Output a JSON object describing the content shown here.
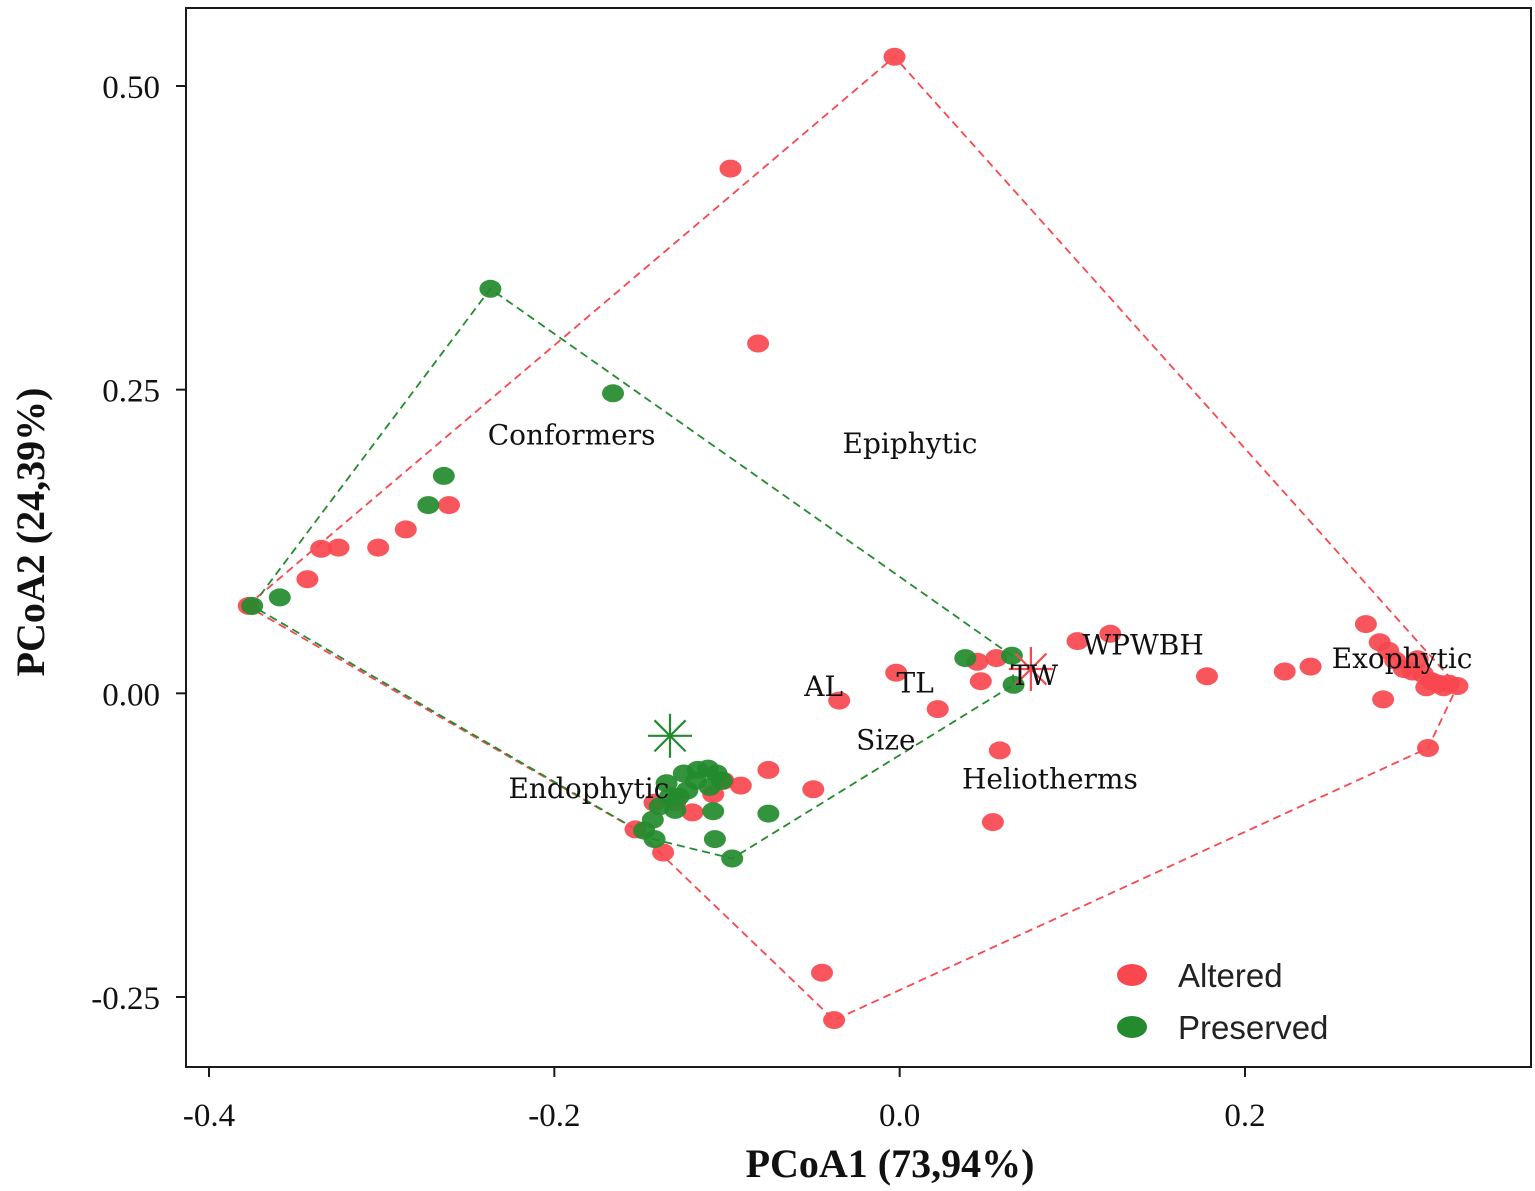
{
  "chart_data": {
    "type": "scatter",
    "title": "",
    "xlabel": "PCoA1 (73,94%)",
    "ylabel": "PCoA2 (24,39%)",
    "xlim": [
      -0.41,
      0.34
    ],
    "ylim": [
      -0.305,
      0.55
    ],
    "xticks": [
      -0.4,
      -0.2,
      0.0,
      0.2
    ],
    "xtick_labels": [
      "-0.4",
      "-0.2",
      "0.0",
      "0.2"
    ],
    "yticks": [
      -0.25,
      0.0,
      0.25,
      0.5
    ],
    "ytick_labels": [
      "-0.25",
      "0.00",
      "0.25",
      "0.50"
    ],
    "grid": false,
    "legend_position": "bottom-right",
    "series": [
      {
        "name": "Altered",
        "color": "#f8474f",
        "points": [
          [
            -0.377,
            0.072
          ],
          [
            -0.343,
            0.094
          ],
          [
            -0.335,
            0.119
          ],
          [
            -0.325,
            0.12
          ],
          [
            -0.302,
            0.12
          ],
          [
            -0.286,
            0.135
          ],
          [
            -0.261,
            0.155
          ],
          [
            -0.098,
            0.432
          ],
          [
            -0.003,
            0.524
          ],
          [
            -0.082,
            0.288
          ],
          [
            -0.035,
            -0.006
          ],
          [
            -0.002,
            0.017
          ],
          [
            0.022,
            -0.013
          ],
          [
            0.045,
            0.026
          ],
          [
            0.047,
            0.01
          ],
          [
            0.056,
            0.029
          ],
          [
            0.058,
            -0.047
          ],
          [
            0.054,
            -0.106
          ],
          [
            0.103,
            0.043
          ],
          [
            0.122,
            0.049
          ],
          [
            0.178,
            0.014
          ],
          [
            0.223,
            0.018
          ],
          [
            0.238,
            0.022
          ],
          [
            0.27,
            0.057
          ],
          [
            0.278,
            0.042
          ],
          [
            0.283,
            0.035
          ],
          [
            0.287,
            0.027
          ],
          [
            0.292,
            0.02
          ],
          [
            0.297,
            0.018
          ],
          [
            0.3,
            0.028
          ],
          [
            0.303,
            0.016
          ],
          [
            0.308,
            0.01
          ],
          [
            0.312,
            0.008
          ],
          [
            0.318,
            0.008
          ],
          [
            0.323,
            0.006
          ],
          [
            0.305,
            0.005
          ],
          [
            0.315,
            0.005
          ],
          [
            0.28,
            -0.005
          ],
          [
            0.306,
            -0.045
          ],
          [
            -0.076,
            -0.063
          ],
          [
            -0.092,
            -0.076
          ],
          [
            -0.102,
            -0.072
          ],
          [
            -0.108,
            -0.083
          ],
          [
            -0.12,
            -0.098
          ],
          [
            -0.13,
            -0.09
          ],
          [
            -0.142,
            -0.09
          ],
          [
            -0.153,
            -0.112
          ],
          [
            -0.137,
            -0.131
          ],
          [
            -0.05,
            -0.079
          ],
          [
            -0.045,
            -0.23
          ],
          [
            -0.038,
            -0.269
          ]
        ]
      },
      {
        "name": "Preserved",
        "color": "#238b2e",
        "points": [
          [
            -0.375,
            0.072
          ],
          [
            -0.359,
            0.079
          ],
          [
            -0.237,
            0.333
          ],
          [
            -0.166,
            0.247
          ],
          [
            -0.264,
            0.179
          ],
          [
            -0.273,
            0.155
          ],
          [
            0.038,
            0.029
          ],
          [
            0.065,
            0.031
          ],
          [
            0.066,
            0.007
          ],
          [
            -0.135,
            -0.074
          ],
          [
            -0.125,
            -0.066
          ],
          [
            -0.117,
            -0.063
          ],
          [
            -0.111,
            -0.062
          ],
          [
            -0.106,
            -0.066
          ],
          [
            -0.103,
            -0.072
          ],
          [
            -0.11,
            -0.077
          ],
          [
            -0.118,
            -0.072
          ],
          [
            -0.123,
            -0.08
          ],
          [
            -0.128,
            -0.085
          ],
          [
            -0.133,
            -0.085
          ],
          [
            -0.139,
            -0.093
          ],
          [
            -0.143,
            -0.104
          ],
          [
            -0.148,
            -0.113
          ],
          [
            -0.142,
            -0.12
          ],
          [
            -0.13,
            -0.096
          ],
          [
            -0.108,
            -0.097
          ],
          [
            -0.076,
            -0.099
          ],
          [
            -0.107,
            -0.12
          ],
          [
            -0.097,
            -0.136
          ]
        ]
      }
    ],
    "hulls": [
      {
        "series": "Altered",
        "vertices": [
          [
            -0.378,
            0.072
          ],
          [
            -0.003,
            0.524
          ],
          [
            0.323,
            0.006
          ],
          [
            0.306,
            -0.045
          ],
          [
            -0.038,
            -0.269
          ],
          [
            -0.153,
            -0.112
          ]
        ]
      },
      {
        "series": "Preserved",
        "vertices": [
          [
            -0.375,
            0.072
          ],
          [
            -0.237,
            0.333
          ],
          [
            0.065,
            0.031
          ],
          [
            0.066,
            0.007
          ],
          [
            -0.097,
            -0.136
          ],
          [
            -0.143,
            -0.12
          ]
        ]
      }
    ],
    "centroids": [
      {
        "series": "Preserved",
        "x": -0.133,
        "y": -0.035
      },
      {
        "series": "Altered",
        "x": 0.076,
        "y": 0.02
      }
    ],
    "annotations": [
      {
        "text": "Conformers",
        "x": -0.19,
        "y": 0.213
      },
      {
        "text": "Epiphytic",
        "x": 0.006,
        "y": 0.206
      },
      {
        "text": "AL",
        "x": -0.044,
        "y": 0.006
      },
      {
        "text": "TL",
        "x": 0.009,
        "y": 0.009
      },
      {
        "text": "TW",
        "x": 0.078,
        "y": 0.015
      },
      {
        "text": "WPWBH",
        "x": 0.141,
        "y": 0.04
      },
      {
        "text": "Exophytic",
        "x": 0.291,
        "y": 0.029
      },
      {
        "text": "Size",
        "x": -0.008,
        "y": -0.038
      },
      {
        "text": "Endophytic",
        "x": -0.18,
        "y": -0.078
      },
      {
        "text": "Heliotherms",
        "x": 0.087,
        "y": -0.07
      }
    ]
  }
}
